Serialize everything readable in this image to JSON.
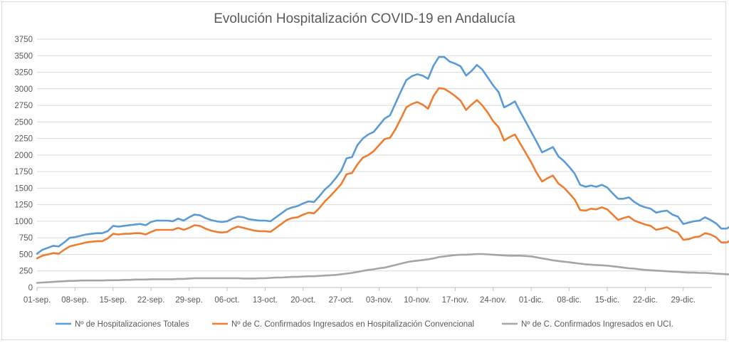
{
  "chart_data": {
    "type": "line",
    "title": "Evolución Hospitalización COVID-19 en Andalucía",
    "xlabel": "",
    "ylabel": "",
    "ylim": [
      0,
      3750
    ],
    "yticks": [
      0,
      250,
      500,
      750,
      1000,
      1250,
      1500,
      1750,
      2000,
      2250,
      2500,
      2750,
      3000,
      3250,
      3500,
      3750
    ],
    "xticks": [
      "01-sep.",
      "08-sep.",
      "15-sep.",
      "22-sep.",
      "29-sep.",
      "06-oct.",
      "13-oct.",
      "20-oct.",
      "27-oct.",
      "03-nov.",
      "10-nov.",
      "17-nov.",
      "24-nov.",
      "01-dic.",
      "08-dic.",
      "15-dic.",
      "22-dic.",
      "29-dic."
    ],
    "grid": true,
    "legend_position": "bottom",
    "x_start": "01-sep.",
    "x_end": "05-ene.",
    "series": [
      {
        "name": "Nº de Hospitalizaciones Totales",
        "color": "#5b9bd5",
        "values": [
          510,
          570,
          600,
          630,
          620,
          680,
          750,
          760,
          780,
          800,
          810,
          820,
          820,
          850,
          930,
          920,
          930,
          940,
          950,
          960,
          940,
          990,
          1010,
          1010,
          1010,
          1000,
          1040,
          1010,
          1060,
          1100,
          1090,
          1050,
          1020,
          1000,
          990,
          1000,
          1040,
          1070,
          1060,
          1030,
          1020,
          1010,
          1010,
          1000,
          1060,
          1120,
          1180,
          1210,
          1230,
          1270,
          1300,
          1290,
          1380,
          1480,
          1550,
          1650,
          1760,
          1950,
          1970,
          2150,
          2250,
          2310,
          2350,
          2450,
          2550,
          2600,
          2780,
          2960,
          3130,
          3190,
          3220,
          3200,
          3150,
          3350,
          3480,
          3480,
          3410,
          3380,
          3340,
          3200,
          3270,
          3360,
          3290,
          3170,
          3050,
          2950,
          2720,
          2760,
          2810,
          2650,
          2500,
          2350,
          2200,
          2040,
          2080,
          2120,
          1980,
          1910,
          1820,
          1720,
          1550,
          1520,
          1540,
          1520,
          1550,
          1510,
          1420,
          1340,
          1340,
          1360,
          1290,
          1240,
          1210,
          1190,
          1130,
          1150,
          1160,
          1100,
          1070,
          960,
          980,
          1000,
          1010,
          1060,
          1020,
          970,
          890,
          890,
          940,
          990,
          1050
        ]
      },
      {
        "name": "Nº de C. Confirmados Ingresados en Hospitalización Convencional",
        "color": "#ed7d31",
        "values": [
          440,
          480,
          500,
          520,
          510,
          570,
          620,
          640,
          660,
          680,
          690,
          700,
          700,
          740,
          810,
          800,
          810,
          810,
          820,
          820,
          800,
          840,
          870,
          870,
          870,
          870,
          900,
          870,
          900,
          940,
          930,
          890,
          860,
          840,
          830,
          840,
          890,
          920,
          900,
          880,
          860,
          850,
          850,
          840,
          900,
          960,
          1020,
          1050,
          1060,
          1100,
          1130,
          1120,
          1200,
          1300,
          1380,
          1470,
          1560,
          1710,
          1730,
          1860,
          1960,
          2000,
          2060,
          2150,
          2240,
          2260,
          2390,
          2550,
          2720,
          2770,
          2800,
          2760,
          2700,
          2890,
          3010,
          3000,
          2950,
          2890,
          2820,
          2680,
          2760,
          2830,
          2750,
          2640,
          2510,
          2420,
          2220,
          2270,
          2310,
          2170,
          2030,
          1890,
          1730,
          1600,
          1650,
          1690,
          1570,
          1510,
          1420,
          1330,
          1170,
          1160,
          1190,
          1180,
          1210,
          1180,
          1100,
          1020,
          1050,
          1070,
          1010,
          980,
          950,
          930,
          870,
          890,
          910,
          860,
          830,
          720,
          730,
          760,
          770,
          820,
          800,
          760,
          680,
          680,
          720,
          780,
          840
        ]
      },
      {
        "name": "Nº de C. Confirmados Ingresados en UCI.",
        "color": "#a5a5a5",
        "values": [
          70,
          75,
          80,
          85,
          90,
          95,
          100,
          100,
          105,
          105,
          105,
          105,
          105,
          110,
          110,
          110,
          115,
          115,
          120,
          120,
          120,
          125,
          125,
          125,
          125,
          125,
          130,
          130,
          135,
          140,
          140,
          140,
          140,
          140,
          140,
          140,
          140,
          140,
          135,
          135,
          135,
          140,
          140,
          145,
          150,
          150,
          155,
          160,
          160,
          165,
          170,
          170,
          175,
          180,
          185,
          190,
          200,
          210,
          220,
          235,
          250,
          265,
          275,
          290,
          300,
          320,
          340,
          360,
          380,
          395,
          405,
          415,
          425,
          440,
          460,
          470,
          480,
          490,
          495,
          495,
          500,
          505,
          505,
          500,
          495,
          490,
          485,
          480,
          480,
          480,
          475,
          470,
          455,
          440,
          425,
          410,
          400,
          390,
          380,
          370,
          360,
          350,
          345,
          340,
          335,
          330,
          320,
          310,
          300,
          290,
          285,
          275,
          265,
          260,
          255,
          250,
          245,
          240,
          235,
          230,
          225,
          225,
          220,
          220,
          215,
          210,
          205,
          200,
          195,
          200,
          205,
          210,
          215
        ]
      }
    ]
  }
}
